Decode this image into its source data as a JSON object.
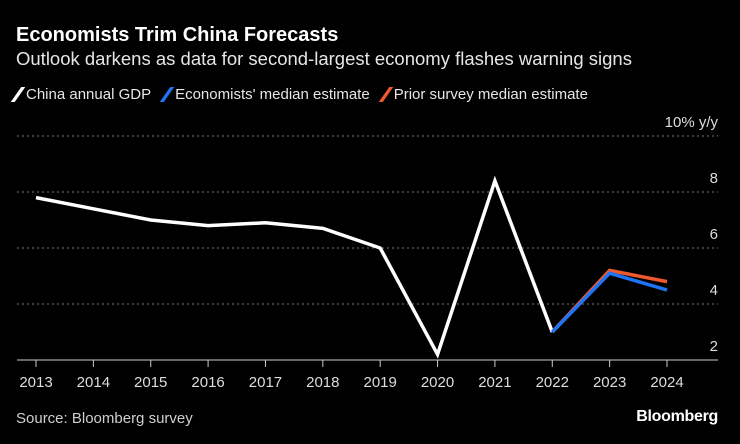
{
  "title": "Economists Trim China Forecasts",
  "subtitle": "Outlook darkens as data for second-largest economy flashes warning signs",
  "source": "Source: Bloomberg survey",
  "logo": "Bloomberg",
  "chart_data": {
    "type": "line",
    "x": [
      2013,
      2014,
      2015,
      2016,
      2017,
      2018,
      2019,
      2020,
      2021,
      2022,
      2023,
      2024
    ],
    "x_tick_labels": [
      "2013",
      "2014",
      "2015",
      "2016",
      "2017",
      "2018",
      "2019",
      "2020",
      "2021",
      "2022",
      "2023",
      "2024"
    ],
    "y_tick_labels": [
      "10% y/y",
      "8",
      "6",
      "4",
      "2"
    ],
    "y_ticks": [
      10,
      8,
      6,
      4,
      2
    ],
    "ylim": [
      2,
      10
    ],
    "grid": true,
    "legend_position": "top-left",
    "series": [
      {
        "name": "China annual GDP",
        "color": "#ffffff",
        "x": [
          2013,
          2014,
          2015,
          2016,
          2017,
          2018,
          2019,
          2020,
          2021,
          2022
        ],
        "values": [
          7.8,
          7.4,
          7.0,
          6.8,
          6.9,
          6.7,
          6.0,
          2.2,
          8.4,
          3.0
        ]
      },
      {
        "name": "Prior survey median estimate",
        "color": "#f0582e",
        "x": [
          2022,
          2023,
          2024
        ],
        "values": [
          3.0,
          5.2,
          4.8
        ]
      },
      {
        "name": "Economists' median estimate",
        "color": "#1f74f5",
        "x": [
          2022,
          2023,
          2024
        ],
        "values": [
          3.0,
          5.1,
          4.5
        ]
      }
    ],
    "legend_order": [
      0,
      2,
      1
    ]
  }
}
